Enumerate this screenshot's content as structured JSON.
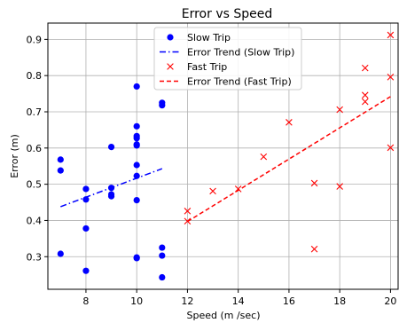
{
  "chart_data": {
    "type": "scatter",
    "title": "Error vs Speed",
    "xlabel": "Speed (m /sec)",
    "ylabel": "Error (m)",
    "xlim": [
      6.5,
      20.3
    ],
    "ylim": [
      0.21,
      0.945
    ],
    "xticks": [
      8,
      10,
      12,
      14,
      16,
      18,
      20
    ],
    "yticks": [
      0.3,
      0.4,
      0.5,
      0.6,
      0.7,
      0.8,
      0.9
    ],
    "grid": true,
    "legend_position": "top-center",
    "series": [
      {
        "name": "Slow Trip",
        "kind": "points",
        "marker": "circle",
        "color": "#0000ff",
        "points": [
          [
            7,
            0.568
          ],
          [
            7,
            0.538
          ],
          [
            7,
            0.308
          ],
          [
            8,
            0.487
          ],
          [
            8,
            0.458
          ],
          [
            8,
            0.378
          ],
          [
            8,
            0.261
          ],
          [
            9,
            0.603
          ],
          [
            9,
            0.49
          ],
          [
            9,
            0.472
          ],
          [
            9,
            0.467
          ],
          [
            10,
            0.77
          ],
          [
            10,
            0.66
          ],
          [
            10,
            0.633
          ],
          [
            10,
            0.627
          ],
          [
            10,
            0.61
          ],
          [
            10,
            0.607
          ],
          [
            10,
            0.553
          ],
          [
            10,
            0.523
          ],
          [
            10,
            0.456
          ],
          [
            10,
            0.298
          ],
          [
            10,
            0.296
          ],
          [
            11,
            0.725
          ],
          [
            11,
            0.718
          ],
          [
            11,
            0.325
          ],
          [
            11,
            0.303
          ],
          [
            11,
            0.243
          ]
        ]
      },
      {
        "name": "Error Trend (Slow Trip)",
        "kind": "line",
        "dash": "dashdot",
        "color": "#0000ff",
        "points": [
          [
            7,
            0.438
          ],
          [
            11,
            0.543
          ]
        ]
      },
      {
        "name": "Fast Trip",
        "kind": "points",
        "marker": "x",
        "color": "#ff0000",
        "points": [
          [
            12,
            0.426
          ],
          [
            12,
            0.398
          ],
          [
            13,
            0.481
          ],
          [
            14,
            0.487
          ],
          [
            15,
            0.576
          ],
          [
            16,
            0.671
          ],
          [
            17,
            0.503
          ],
          [
            17,
            0.321
          ],
          [
            18,
            0.706
          ],
          [
            18,
            0.494
          ],
          [
            19,
            0.821
          ],
          [
            19,
            0.746
          ],
          [
            19,
            0.728
          ],
          [
            20,
            0.912
          ],
          [
            20,
            0.796
          ],
          [
            20,
            0.601
          ]
        ]
      },
      {
        "name": "Error Trend (Fast Trip)",
        "kind": "line",
        "dash": "dashed",
        "color": "#ff0000",
        "points": [
          [
            12,
            0.397
          ],
          [
            20,
            0.742
          ]
        ]
      }
    ]
  }
}
